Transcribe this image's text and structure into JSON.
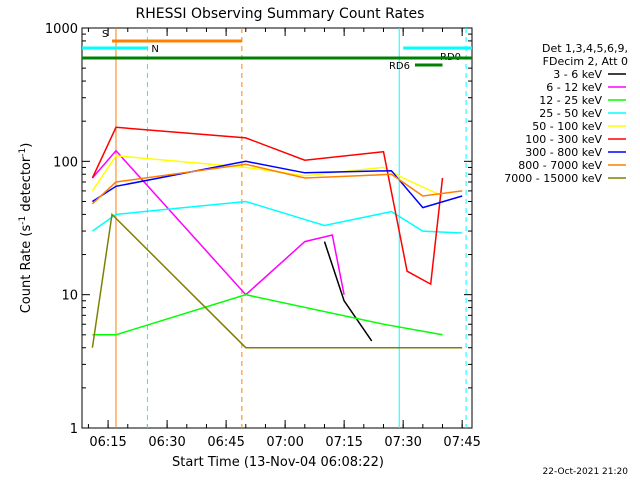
{
  "chart_data": {
    "type": "line",
    "title": "RHESSI Observing Summary Count Rates",
    "xlabel": "Start Time (13-Nov-04 06:08:22)",
    "ylabel": "Count Rate (s⁻¹ detector⁻¹)",
    "ylabel_parts": {
      "main": "Count Rate (s",
      "exp1": "-1",
      "mid": " detector",
      "exp2": "-1",
      "end": ")"
    },
    "yscale": "log",
    "ylim": [
      1,
      1000
    ],
    "xlim": [
      "06:08:22",
      "07:47:30"
    ],
    "x_tick_labels": [
      "06:15",
      "06:30",
      "06:45",
      "07:00",
      "07:15",
      "07:30",
      "07:45"
    ],
    "y_tick_labels": [
      "1",
      "10",
      "100",
      "1000"
    ],
    "y_ticks": [
      1,
      10,
      100,
      1000
    ],
    "grid": false,
    "legend_position": "right",
    "legend_header": [
      "Det 1,3,4,5,6,9,",
      "FDecim 2, Att 0"
    ],
    "timestamp": "22-Oct-2021 21:20",
    "series": [
      {
        "name": "3 - 6 keV",
        "color": "#000000",
        "points": [
          [
            "07:10",
            25
          ],
          [
            "07:15",
            9
          ],
          [
            "07:22",
            4.5
          ]
        ]
      },
      {
        "name": "6 - 12 keV",
        "color": "#ff00ff",
        "points": [
          [
            "06:11",
            75
          ],
          [
            "06:17",
            120
          ],
          [
            "06:50",
            10
          ],
          [
            "07:05",
            25
          ],
          [
            "07:12",
            28
          ],
          [
            "07:15",
            10
          ]
        ]
      },
      {
        "name": "12 - 25 keV",
        "color": "#00ff00",
        "points": [
          [
            "06:11",
            5
          ],
          [
            "06:17",
            5
          ],
          [
            "06:50",
            10
          ],
          [
            "07:25",
            6
          ],
          [
            "07:40",
            5
          ]
        ]
      },
      {
        "name": "25 - 50 keV",
        "color": "#00ffff",
        "points": [
          [
            "06:11",
            30
          ],
          [
            "06:17",
            40
          ],
          [
            "06:50",
            50
          ],
          [
            "07:10",
            33
          ],
          [
            "07:27",
            42
          ],
          [
            "07:35",
            30
          ],
          [
            "07:45",
            29
          ]
        ]
      },
      {
        "name": "50 - 100 keV",
        "color": "#ffff00",
        "points": [
          [
            "06:11",
            60
          ],
          [
            "06:17",
            110
          ],
          [
            "06:50",
            90
          ],
          [
            "07:05",
            78
          ],
          [
            "07:25",
            90
          ],
          [
            "07:30",
            75
          ],
          [
            "07:40",
            55
          ]
        ]
      },
      {
        "name": "100 - 300 keV",
        "color": "#ff0000",
        "points": [
          [
            "06:11",
            75
          ],
          [
            "06:17",
            180
          ],
          [
            "06:50",
            150
          ],
          [
            "07:05",
            102
          ],
          [
            "07:25",
            118
          ],
          [
            "07:31",
            15
          ],
          [
            "07:37",
            12
          ],
          [
            "07:40",
            75
          ]
        ]
      },
      {
        "name": "300 - 800 keV",
        "color": "#0000ff",
        "points": [
          [
            "06:11",
            50
          ],
          [
            "06:17",
            65
          ],
          [
            "06:50",
            100
          ],
          [
            "07:05",
            82
          ],
          [
            "07:27",
            85
          ],
          [
            "07:35",
            45
          ],
          [
            "07:45",
            55
          ]
        ]
      },
      {
        "name": "800 - 7000 keV",
        "color": "#ff8000",
        "points": [
          [
            "06:11",
            48
          ],
          [
            "06:17",
            70
          ],
          [
            "06:50",
            95
          ],
          [
            "07:05",
            75
          ],
          [
            "07:27",
            80
          ],
          [
            "07:35",
            55
          ],
          [
            "07:45",
            60
          ]
        ]
      },
      {
        "name": "7000 - 15000 keV",
        "color": "#808000",
        "points": [
          [
            "06:11",
            4
          ],
          [
            "06:16",
            40
          ],
          [
            "06:50",
            4
          ],
          [
            "07:20",
            4
          ],
          [
            "07:45",
            4
          ]
        ]
      }
    ],
    "state_bars": [
      {
        "label": "S",
        "color": "#ff8000",
        "start": "06:16",
        "end": "06:49"
      },
      {
        "label": "N",
        "color": "#00ffff",
        "start": "06:08:22",
        "end": "06:25"
      },
      {
        "label": "RD0",
        "color": "#00ffff",
        "start": "07:30",
        "end": "07:47:30"
      },
      {
        "label": "RD6",
        "color": "#008000",
        "start": "07:33",
        "end": "07:40"
      },
      {
        "label": "",
        "color": "#008000",
        "start": "06:08:22",
        "end": "07:47:30"
      }
    ],
    "vertical_lines": [
      {
        "time": "06:17",
        "color": "#ff8000",
        "style": "solid"
      },
      {
        "time": "06:25",
        "color": "#00ffff",
        "style": "dashed"
      },
      {
        "time": "06:49",
        "color": "#ff8000",
        "style": "dashed"
      },
      {
        "time": "07:29",
        "color": "#00ffff",
        "style": "solid"
      },
      {
        "time": "07:46",
        "color": "#00ffff",
        "style": "dashed"
      }
    ]
  }
}
